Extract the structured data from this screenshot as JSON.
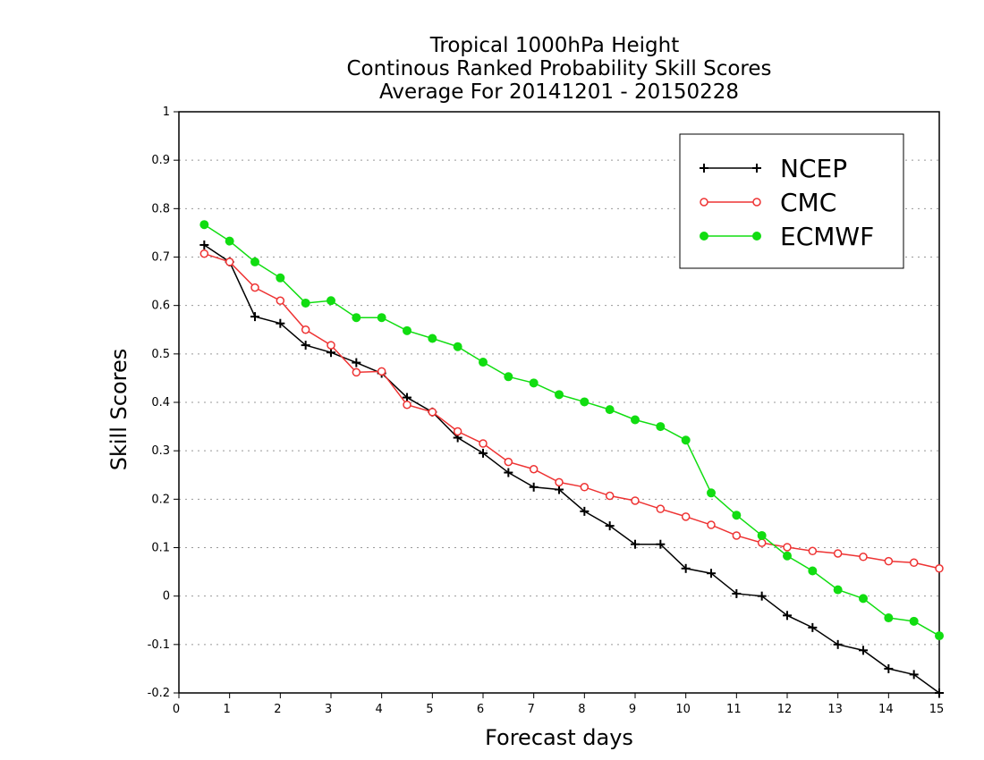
{
  "chart_data": {
    "type": "line",
    "title": [
      "Tropical 1000hPa Height",
      "Continous Ranked Probability Skill Scores",
      "Average For 20141201 - 20150228"
    ],
    "xlabel": "Forecast days",
    "ylabel": "Skill Scores",
    "xlim": [
      0,
      15
    ],
    "ylim": [
      -0.2,
      1
    ],
    "xticks": [
      "0",
      "1",
      "2",
      "3",
      "4",
      "5",
      "6",
      "7",
      "8",
      "9",
      "10",
      "11",
      "12",
      "13",
      "14",
      "15"
    ],
    "yticks": [
      "-0.2",
      "-0.1",
      "0",
      "0.1",
      "0.2",
      "0.3",
      "0.4",
      "0.5",
      "0.6",
      "0.7",
      "0.8",
      "0.9",
      "1"
    ],
    "grid": "horizontal-dotted",
    "legend_position": "top-right",
    "x": [
      0.5,
      1,
      1.5,
      2,
      2.5,
      3,
      3.5,
      4,
      4.5,
      5,
      5.5,
      6,
      6.5,
      7,
      7.5,
      8,
      8.5,
      9,
      9.5,
      10,
      10.5,
      11,
      11.5,
      12,
      12.5,
      13,
      13.5,
      14,
      14.5,
      15
    ],
    "series": [
      {
        "name": "NCEP",
        "color": "#000000",
        "marker": "plus",
        "values": [
          0.725,
          0.69,
          0.577,
          0.563,
          0.518,
          0.503,
          0.482,
          0.46,
          0.41,
          0.38,
          0.327,
          0.295,
          0.255,
          0.225,
          0.22,
          0.175,
          0.145,
          0.107,
          0.107,
          0.057,
          0.047,
          0.005,
          0.0,
          -0.04,
          -0.065,
          -0.1,
          -0.112,
          -0.15,
          -0.162,
          -0.2
        ]
      },
      {
        "name": "CMC",
        "color": "#ee3333",
        "marker": "open-circle",
        "values": [
          0.707,
          0.69,
          0.637,
          0.61,
          0.55,
          0.518,
          0.462,
          0.464,
          0.395,
          0.38,
          0.34,
          0.315,
          0.277,
          0.262,
          0.235,
          0.225,
          0.207,
          0.197,
          0.18,
          0.164,
          0.147,
          0.125,
          0.11,
          0.101,
          0.093,
          0.088,
          0.081,
          0.072,
          0.069,
          0.057
        ]
      },
      {
        "name": "ECMWF",
        "color": "#11dd11",
        "marker": "filled-circle",
        "values": [
          0.767,
          0.733,
          0.69,
          0.657,
          0.605,
          0.61,
          0.575,
          0.575,
          0.548,
          0.532,
          0.515,
          0.483,
          0.453,
          0.44,
          0.416,
          0.401,
          0.385,
          0.364,
          0.35,
          0.322,
          0.213,
          0.167,
          0.125,
          0.083,
          0.052,
          0.013,
          -0.005,
          -0.045,
          -0.052,
          -0.082
        ]
      }
    ]
  }
}
